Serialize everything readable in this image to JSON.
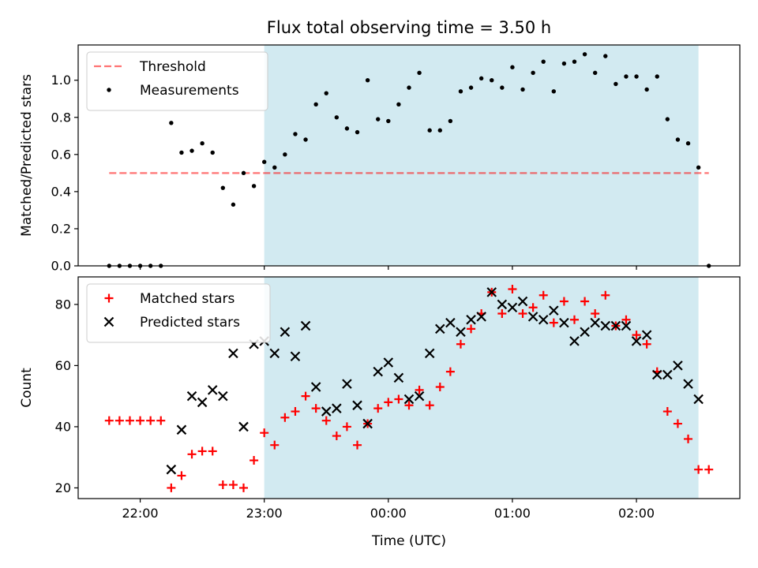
{
  "chart_data": {
    "type": "scatter",
    "title": "Flux total observing time = 3.50 h",
    "xlabel": "Time (UTC)",
    "x_ticks": [
      {
        "t": "22:00",
        "label": "22:00"
      },
      {
        "t": "23:00",
        "label": "23:00"
      },
      {
        "t": "00:00",
        "label": "00:00"
      },
      {
        "t": "01:00",
        "label": "01:00"
      },
      {
        "t": "02:00",
        "label": "02:00"
      }
    ],
    "x_range": [
      "21:30",
      "02:50"
    ],
    "observing_window": {
      "start": "23:00",
      "end": "02:30",
      "color": "#add8e6"
    },
    "panels": [
      {
        "name": "ratio",
        "ylabel": "Matched/Predicted stars",
        "ylim": [
          0.0,
          1.19
        ],
        "yticks": [
          0.0,
          0.2,
          0.4,
          0.6,
          0.8,
          1.0
        ],
        "ytick_labels": [
          "0.0",
          "0.2",
          "0.4",
          "0.6",
          "0.8",
          "1.0"
        ],
        "legend": {
          "position": "top-left",
          "entries": [
            "Threshold",
            "Measurements"
          ]
        },
        "threshold": {
          "name": "Threshold",
          "value": 0.5,
          "x_from": "21:45",
          "x_to": "02:35",
          "color": "#ff0000"
        },
        "series": [
          {
            "name": "Measurements",
            "marker": "dot",
            "color": "#000000",
            "points": [
              [
                "21:45",
                0.0
              ],
              [
                "21:50",
                0.0
              ],
              [
                "21:55",
                0.0
              ],
              [
                "22:00",
                0.0
              ],
              [
                "22:05",
                0.0
              ],
              [
                "22:10",
                0.0
              ],
              [
                "22:15",
                0.77
              ],
              [
                "22:20",
                0.61
              ],
              [
                "22:25",
                0.62
              ],
              [
                "22:30",
                0.66
              ],
              [
                "22:35",
                0.61
              ],
              [
                "22:40",
                0.42
              ],
              [
                "22:45",
                0.33
              ],
              [
                "22:50",
                0.5
              ],
              [
                "22:55",
                0.43
              ],
              [
                "23:00",
                0.56
              ],
              [
                "23:05",
                0.53
              ],
              [
                "23:10",
                0.6
              ],
              [
                "23:15",
                0.71
              ],
              [
                "23:20",
                0.68
              ],
              [
                "23:25",
                0.87
              ],
              [
                "23:30",
                0.93
              ],
              [
                "23:35",
                0.8
              ],
              [
                "23:40",
                0.74
              ],
              [
                "23:45",
                0.72
              ],
              [
                "23:50",
                1.0
              ],
              [
                "23:55",
                0.79
              ],
              [
                "00:00",
                0.78
              ],
              [
                "00:05",
                0.87
              ],
              [
                "00:10",
                0.96
              ],
              [
                "00:15",
                1.04
              ],
              [
                "00:20",
                0.73
              ],
              [
                "00:25",
                0.73
              ],
              [
                "00:30",
                0.78
              ],
              [
                "00:35",
                0.94
              ],
              [
                "00:40",
                0.96
              ],
              [
                "00:45",
                1.01
              ],
              [
                "00:50",
                1.0
              ],
              [
                "00:55",
                0.96
              ],
              [
                "01:00",
                1.07
              ],
              [
                "01:05",
                0.95
              ],
              [
                "01:10",
                1.04
              ],
              [
                "01:15",
                1.1
              ],
              [
                "01:20",
                0.94
              ],
              [
                "01:25",
                1.09
              ],
              [
                "01:30",
                1.1
              ],
              [
                "01:35",
                1.14
              ],
              [
                "01:40",
                1.04
              ],
              [
                "01:45",
                1.13
              ],
              [
                "01:50",
                0.98
              ],
              [
                "01:55",
                1.02
              ],
              [
                "02:00",
                1.02
              ],
              [
                "02:05",
                0.95
              ],
              [
                "02:10",
                1.02
              ],
              [
                "02:15",
                0.79
              ],
              [
                "02:20",
                0.68
              ],
              [
                "02:25",
                0.66
              ],
              [
                "02:30",
                0.53
              ],
              [
                "02:35",
                0.0
              ]
            ]
          }
        ]
      },
      {
        "name": "count",
        "ylabel": "Count",
        "ylim": [
          16.5,
          89
        ],
        "yticks": [
          20,
          40,
          60,
          80
        ],
        "ytick_labels": [
          "20",
          "40",
          "60",
          "80"
        ],
        "legend": {
          "position": "top-left",
          "entries": [
            "Matched stars",
            "Predicted stars"
          ]
        },
        "series": [
          {
            "name": "Matched stars",
            "marker": "plus",
            "color": "#ff0000",
            "points": [
              [
                "21:45",
                42
              ],
              [
                "21:50",
                42
              ],
              [
                "21:55",
                42
              ],
              [
                "22:00",
                42
              ],
              [
                "22:05",
                42
              ],
              [
                "22:10",
                42
              ],
              [
                "22:15",
                20
              ],
              [
                "22:20",
                24
              ],
              [
                "22:25",
                31
              ],
              [
                "22:30",
                32
              ],
              [
                "22:35",
                32
              ],
              [
                "22:40",
                21
              ],
              [
                "22:45",
                21
              ],
              [
                "22:50",
                20
              ],
              [
                "22:55",
                29
              ],
              [
                "23:00",
                38
              ],
              [
                "23:05",
                34
              ],
              [
                "23:10",
                43
              ],
              [
                "23:15",
                45
              ],
              [
                "23:20",
                50
              ],
              [
                "23:25",
                46
              ],
              [
                "23:30",
                42
              ],
              [
                "23:35",
                37
              ],
              [
                "23:40",
                40
              ],
              [
                "23:45",
                34
              ],
              [
                "23:50",
                41
              ],
              [
                "23:55",
                46
              ],
              [
                "00:00",
                48
              ],
              [
                "00:05",
                49
              ],
              [
                "00:10",
                47
              ],
              [
                "00:15",
                52
              ],
              [
                "00:20",
                47
              ],
              [
                "00:25",
                53
              ],
              [
                "00:30",
                58
              ],
              [
                "00:35",
                67
              ],
              [
                "00:40",
                72
              ],
              [
                "00:45",
                77
              ],
              [
                "00:50",
                84
              ],
              [
                "00:55",
                77
              ],
              [
                "01:00",
                85
              ],
              [
                "01:05",
                77
              ],
              [
                "01:10",
                79
              ],
              [
                "01:15",
                83
              ],
              [
                "01:20",
                74
              ],
              [
                "01:25",
                81
              ],
              [
                "01:30",
                75
              ],
              [
                "01:35",
                81
              ],
              [
                "01:40",
                77
              ],
              [
                "01:45",
                83
              ],
              [
                "01:50",
                73
              ],
              [
                "01:55",
                75
              ],
              [
                "02:00",
                70
              ],
              [
                "02:05",
                67
              ],
              [
                "02:10",
                58
              ],
              [
                "02:15",
                45
              ],
              [
                "02:20",
                41
              ],
              [
                "02:25",
                36
              ],
              [
                "02:30",
                26
              ],
              [
                "02:35",
                26
              ]
            ]
          },
          {
            "name": "Predicted stars",
            "marker": "cross",
            "color": "#000000",
            "points": [
              [
                "22:15",
                26
              ],
              [
                "22:20",
                39
              ],
              [
                "22:25",
                50
              ],
              [
                "22:30",
                48
              ],
              [
                "22:35",
                52
              ],
              [
                "22:40",
                50
              ],
              [
                "22:45",
                64
              ],
              [
                "22:50",
                40
              ],
              [
                "22:55",
                67
              ],
              [
                "23:00",
                68
              ],
              [
                "23:05",
                64
              ],
              [
                "23:10",
                71
              ],
              [
                "23:15",
                63
              ],
              [
                "23:20",
                73
              ],
              [
                "23:25",
                53
              ],
              [
                "23:30",
                45
              ],
              [
                "23:35",
                46
              ],
              [
                "23:40",
                54
              ],
              [
                "23:45",
                47
              ],
              [
                "23:50",
                41
              ],
              [
                "23:55",
                58
              ],
              [
                "00:00",
                61
              ],
              [
                "00:05",
                56
              ],
              [
                "00:10",
                49
              ],
              [
                "00:15",
                50
              ],
              [
                "00:20",
                64
              ],
              [
                "00:25",
                72
              ],
              [
                "00:30",
                74
              ],
              [
                "00:35",
                71
              ],
              [
                "00:40",
                75
              ],
              [
                "00:45",
                76
              ],
              [
                "00:50",
                84
              ],
              [
                "00:55",
                80
              ],
              [
                "01:00",
                79
              ],
              [
                "01:05",
                81
              ],
              [
                "01:10",
                76
              ],
              [
                "01:15",
                75
              ],
              [
                "01:20",
                78
              ],
              [
                "01:25",
                74
              ],
              [
                "01:30",
                68
              ],
              [
                "01:35",
                71
              ],
              [
                "01:40",
                74
              ],
              [
                "01:45",
                73
              ],
              [
                "01:50",
                73
              ],
              [
                "01:55",
                73
              ],
              [
                "02:00",
                68
              ],
              [
                "02:05",
                70
              ],
              [
                "02:10",
                57
              ],
              [
                "02:15",
                57
              ],
              [
                "02:20",
                60
              ],
              [
                "02:25",
                54
              ],
              [
                "02:30",
                49
              ]
            ]
          }
        ]
      }
    ]
  }
}
